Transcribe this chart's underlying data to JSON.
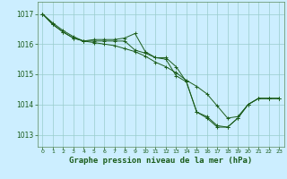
{
  "background_color": "#cceeff",
  "grid_color": "#99cccc",
  "line_color": "#1a5c1a",
  "spine_color": "#5c8a5c",
  "title": "Graphe pression niveau de la mer (hPa)",
  "xlim": [
    -0.5,
    23.5
  ],
  "ylim": [
    1012.6,
    1017.4
  ],
  "yticks": [
    1013,
    1014,
    1015,
    1016,
    1017
  ],
  "xticks": [
    0,
    1,
    2,
    3,
    4,
    5,
    6,
    7,
    8,
    9,
    10,
    11,
    12,
    13,
    14,
    15,
    16,
    17,
    18,
    19,
    20,
    21,
    22,
    23
  ],
  "series": [
    {
      "x": [
        0,
        1,
        2,
        3,
        4,
        5,
        6,
        7,
        8,
        9,
        10,
        11,
        12,
        13,
        14,
        15,
        16,
        17,
        18,
        19,
        20,
        21,
        22,
        23
      ],
      "y": [
        1017.0,
        1016.7,
        1016.45,
        1016.25,
        1016.1,
        1016.05,
        1016.0,
        1015.95,
        1015.85,
        1015.75,
        1015.6,
        1015.4,
        1015.25,
        1015.05,
        1014.8,
        1014.6,
        1014.35,
        1013.95,
        1013.55,
        1013.6,
        1014.0,
        1014.2,
        1014.2,
        1014.2
      ]
    },
    {
      "x": [
        0,
        1,
        2,
        3,
        4,
        5,
        6,
        7,
        8,
        9,
        10,
        11,
        12,
        13,
        14,
        15,
        16,
        17,
        18,
        19,
        20,
        21,
        22,
        23
      ],
      "y": [
        1017.0,
        1016.65,
        1016.4,
        1016.2,
        1016.1,
        1016.15,
        1016.15,
        1016.15,
        1016.2,
        1016.35,
        1015.75,
        1015.55,
        1015.55,
        1015.25,
        1014.75,
        1013.75,
        1013.6,
        1013.3,
        1013.25,
        1013.55,
        1014.0,
        1014.2,
        1014.2,
        1014.2
      ]
    },
    {
      "x": [
        0,
        1,
        2,
        3,
        4,
        5,
        6,
        7,
        8,
        9,
        10,
        11,
        12,
        13,
        14,
        15,
        16,
        17,
        18,
        19,
        20,
        21,
        22,
        23
      ],
      "y": [
        1017.0,
        1016.65,
        1016.4,
        1016.2,
        1016.1,
        1016.1,
        1016.1,
        1016.1,
        1016.1,
        1015.8,
        1015.7,
        1015.55,
        1015.5,
        1014.95,
        1014.75,
        1013.75,
        1013.55,
        1013.25,
        1013.25,
        1013.55,
        1014.0,
        1014.2,
        1014.2,
        1014.2
      ]
    }
  ]
}
